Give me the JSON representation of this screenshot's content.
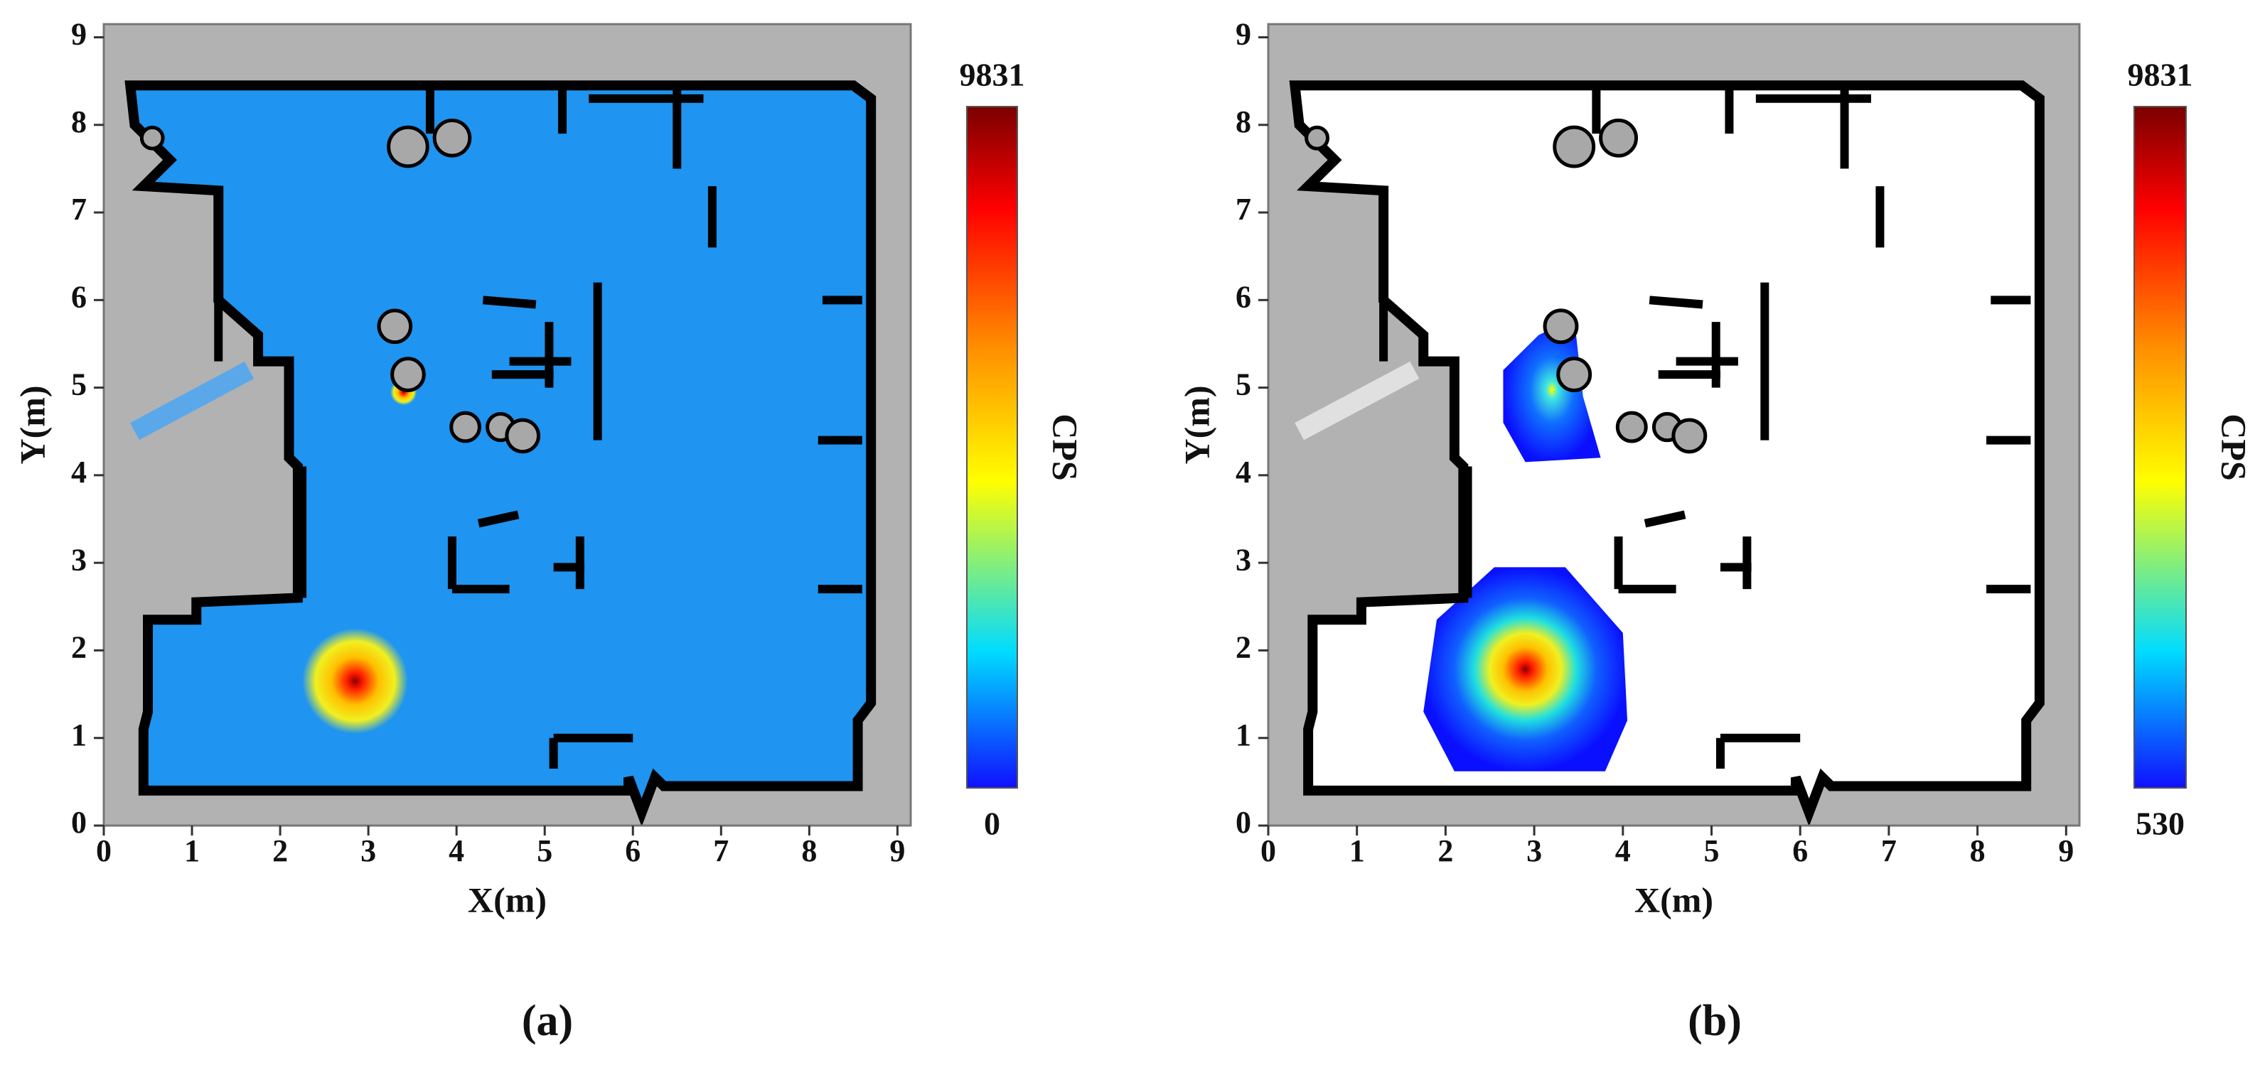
{
  "chart_data": [
    {
      "type": "heatmap",
      "caption": "(a)",
      "xlabel": "X(m)",
      "ylabel": "Y(m)",
      "colorbar_label": "CPS",
      "xlim": [
        0,
        9.15
      ],
      "ylim": [
        0,
        9.15
      ],
      "xticks": [
        0,
        1,
        2,
        3,
        4,
        5,
        6,
        7,
        8,
        9
      ],
      "yticks": [
        0,
        1,
        2,
        3,
        4,
        5,
        6,
        7,
        8,
        9
      ],
      "clim": [
        0,
        9831
      ],
      "cticks": [
        0,
        9831
      ],
      "floor_color": "#1f94f0",
      "background_color": "#b2b2b2"
    },
    {
      "type": "heatmap",
      "caption": "(b)",
      "xlabel": "X(m)",
      "ylabel": "Y(m)",
      "colorbar_label": "CPS",
      "xlim": [
        0,
        9.15
      ],
      "ylim": [
        0,
        9.15
      ],
      "xticks": [
        0,
        1,
        2,
        3,
        4,
        5,
        6,
        7,
        8,
        9
      ],
      "yticks": [
        0,
        1,
        2,
        3,
        4,
        5,
        6,
        7,
        8,
        9
      ],
      "clim": [
        530,
        9831
      ],
      "cticks": [
        530,
        9831
      ],
      "floor_color": "#ffffff",
      "background_color": "#b2b2b2"
    }
  ]
}
